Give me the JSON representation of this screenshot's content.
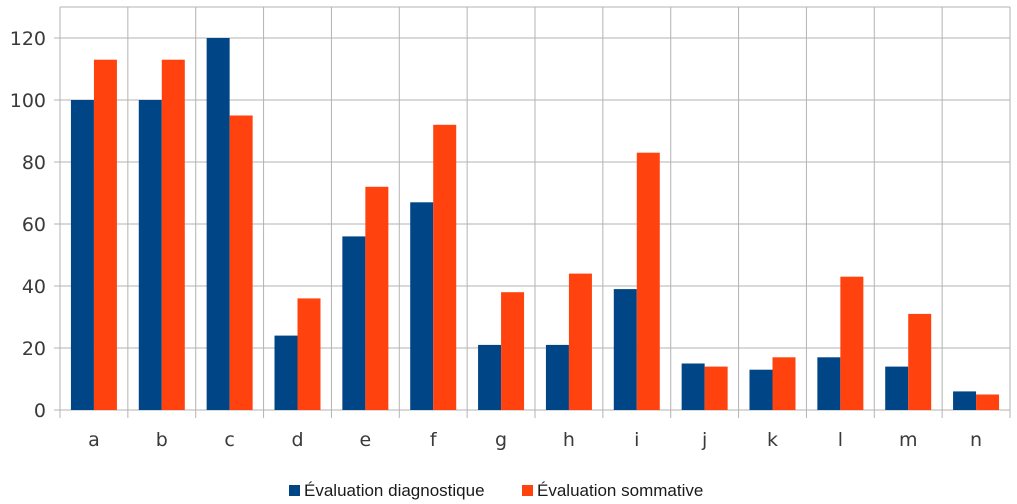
{
  "chart_data": {
    "type": "bar",
    "title": "",
    "xlabel": "",
    "ylabel": "",
    "categories": [
      "a",
      "b",
      "c",
      "d",
      "e",
      "f",
      "g",
      "h",
      "i",
      "j",
      "k",
      "l",
      "m",
      "n"
    ],
    "series": [
      {
        "name": "Évaluation diagnostique",
        "color": "#004586",
        "values": [
          100,
          100,
          120,
          24,
          56,
          67,
          21,
          21,
          39,
          15,
          13,
          17,
          14,
          6
        ]
      },
      {
        "name": "Évaluation sommative",
        "color": "#ff420e",
        "values": [
          113,
          113,
          95,
          36,
          72,
          92,
          38,
          44,
          83,
          14,
          17,
          43,
          31,
          5
        ]
      }
    ],
    "ylim": [
      0,
      130
    ],
    "yticks": [
      0,
      20,
      40,
      60,
      80,
      100,
      120
    ],
    "grid": true,
    "legend_position": "bottom"
  }
}
